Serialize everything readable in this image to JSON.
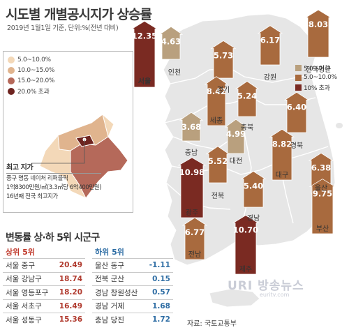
{
  "title": "시도별 개별공시지가 상승률",
  "subtitle": "2019년 1월1일 기준, 단위:%(전년 대비)",
  "colors": {
    "legend_low": "#b9a07e",
    "legend_mid": "#a86a3e",
    "legend_high": "#7a2a22",
    "seoul_5_10": "#f3d8b8",
    "seoul_10_15": "#e0b48e",
    "seoul_15_20": "#b5695a",
    "seoul_20_plus": "#6e2420",
    "map_land": "#e6e6e6"
  },
  "seoul_legend": [
    {
      "label": "5.0~10.0%",
      "color": "#f3d8b8"
    },
    {
      "label": "10.0~15.0%",
      "color": "#e0b48e"
    },
    {
      "label": "15.0~20.0%",
      "color": "#b5695a"
    },
    {
      "label": "20.0% 초과",
      "color": "#6e2420"
    }
  ],
  "nation_legend": [
    {
      "label": "5.0%이하",
      "color": "#b9a07e"
    },
    {
      "label": "5.0~10.0%",
      "color": "#a86a3e"
    },
    {
      "label": "10% 초과",
      "color": "#7a2a22"
    }
  ],
  "top_price": {
    "heading": "최고 지가",
    "lines": [
      "중구 명동 네이처 리퍼블릭",
      "1억8300만원/㎡(3.3㎡당 6억400만원)",
      "16년째 전국 최고지가"
    ]
  },
  "chart_data": {
    "type": "bar",
    "title": "시도별 개별공시지가 상승률",
    "subtitle": "2019년 1월1일 기준, 단위:%(전년 대비)",
    "categories": [
      "서울",
      "인천",
      "경기",
      "강원",
      "전국평균",
      "세종",
      "충북",
      "충남",
      "대전",
      "경북",
      "전북",
      "대구",
      "울산",
      "광주",
      "경남",
      "부산",
      "전남",
      "제주"
    ],
    "values": [
      12.35,
      4.63,
      5.73,
      6.17,
      8.03,
      8.42,
      5.24,
      3.68,
      4.99,
      6.4,
      5.52,
      8.82,
      6.38,
      10.98,
      5.4,
      9.75,
      6.77,
      10.7
    ],
    "legend": [
      "5.0%이하",
      "5.0~10.0%",
      "10% 초과"
    ],
    "top5_up": {
      "title": "상위 5위",
      "rows": [
        {
          "name": "서울 중구",
          "value": 20.49
        },
        {
          "name": "서울 강남구",
          "value": 18.74
        },
        {
          "name": "서울 영등포구",
          "value": 18.2
        },
        {
          "name": "서울 서초구",
          "value": 16.49
        },
        {
          "name": "서울 성동구",
          "value": 15.36
        }
      ]
    },
    "top5_down": {
      "title": "하위 5위",
      "rows": [
        {
          "name": "울산 동구",
          "value": -1.11
        },
        {
          "name": "전북 군산",
          "value": 0.15
        },
        {
          "name": "경남 창원성산",
          "value": 0.57
        },
        {
          "name": "경남 거제",
          "value": 1.68
        },
        {
          "name": "충남 당진",
          "value": 1.72
        }
      ]
    }
  },
  "rank_section_title": "변동률 상·하 5위 시군구",
  "source": "자료: 국토교통부",
  "watermark": "URI 방송뉴스",
  "watermark_url": "euritv.com"
}
